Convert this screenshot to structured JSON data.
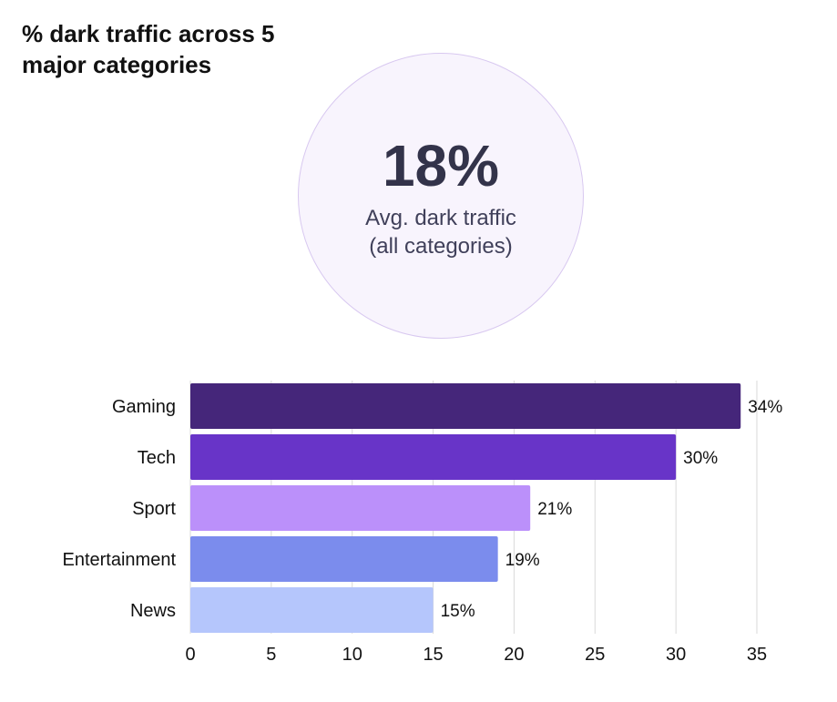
{
  "title": "% dark traffic across 5 major categories",
  "kpi": {
    "value": "18%",
    "label_line1": "Avg. dark traffic",
    "label_line2": "(all categories)"
  },
  "colors": {
    "kpi_circle_fill": "#f8f4fd",
    "kpi_circle_border": "#d8c8f0",
    "grid": "#d9d9d9"
  },
  "chart_data": {
    "type": "bar",
    "orientation": "horizontal",
    "categories": [
      "Gaming",
      "Tech",
      "Sport",
      "Entertainment",
      "News"
    ],
    "values": [
      34,
      30,
      21,
      19,
      15
    ],
    "value_labels": [
      "34%",
      "30%",
      "21%",
      "19%",
      "15%"
    ],
    "colors": [
      "#45267a",
      "#6834c8",
      "#bb90fa",
      "#7b8ced",
      "#b5c6fc"
    ],
    "title": "% dark traffic across 5 major categories",
    "xlabel": "",
    "ylabel": "",
    "xlim": [
      0,
      35
    ],
    "xticks": [
      0,
      5,
      10,
      15,
      20,
      25,
      30,
      35
    ],
    "grid": "vertical",
    "legend": "none"
  }
}
